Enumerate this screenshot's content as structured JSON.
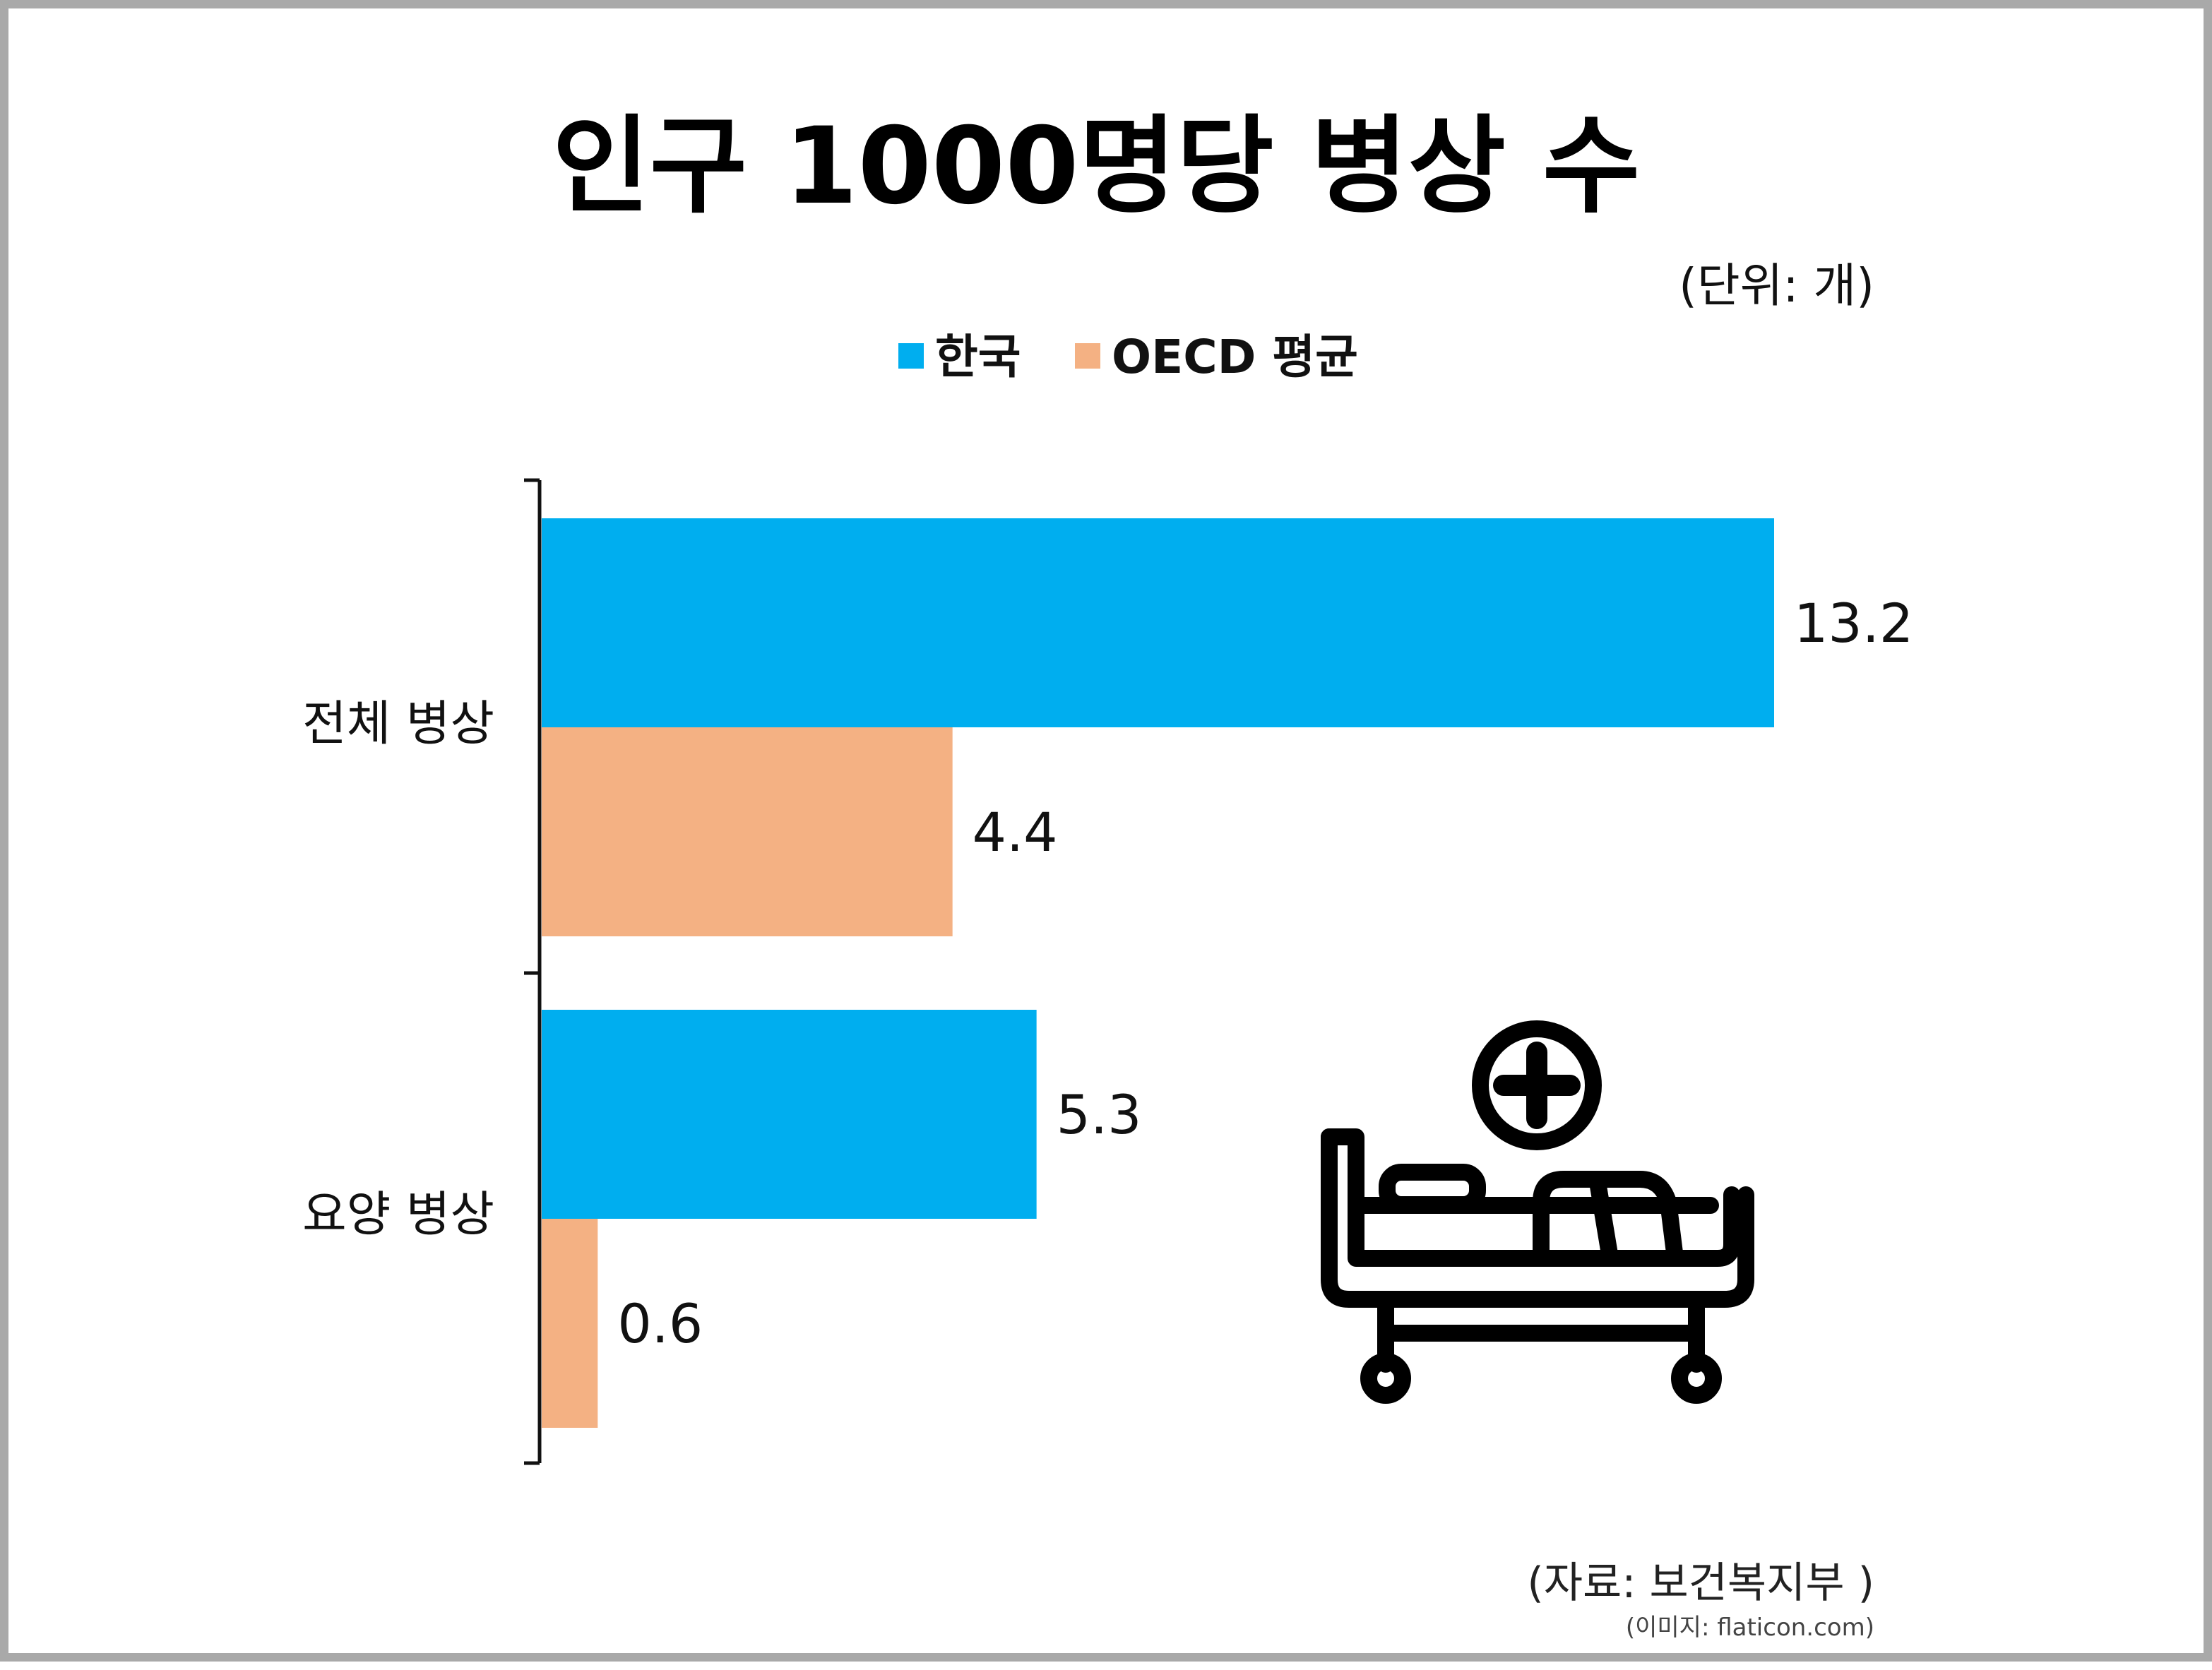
{
  "chart_data": {
    "type": "bar",
    "orientation": "horizontal",
    "title": "인구 1000명당 병상 수",
    "unit_note": "(단위: 개)",
    "categories": [
      "전체 병상",
      "요양 병상"
    ],
    "series": [
      {
        "name": "한국",
        "color": "#00aeef",
        "values": [
          13.2,
          5.3
        ]
      },
      {
        "name": "OECD 평균",
        "color": "#f4b183",
        "values": [
          4.4,
          0.6
        ]
      }
    ],
    "value_labels": [
      [
        "13.2",
        "5.3"
      ],
      [
        "4.4",
        "0.6"
      ]
    ],
    "xlim": [
      0,
      13.2
    ],
    "legend_position": "top",
    "grid": false
  },
  "footer": {
    "source": "(자료: 보건복지부 )",
    "image_credit": "(이미지: flaticon.com)"
  },
  "illustration": {
    "icon": "hospital-bed-icon"
  }
}
